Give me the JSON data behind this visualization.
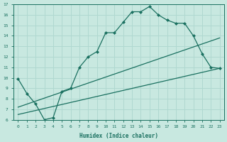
{
  "xlabel": "Humidex (Indice chaleur)",
  "bg_color": "#c8e8e0",
  "grid_color": "#b0d8d0",
  "line_color": "#1a7060",
  "xlim": [
    -0.5,
    23.5
  ],
  "ylim": [
    6,
    17
  ],
  "yticks": [
    6,
    7,
    8,
    9,
    10,
    11,
    12,
    13,
    14,
    15,
    16,
    17
  ],
  "xticks": [
    0,
    1,
    2,
    3,
    4,
    5,
    6,
    7,
    8,
    9,
    10,
    11,
    12,
    13,
    14,
    15,
    16,
    17,
    18,
    19,
    20,
    21,
    22,
    23
  ],
  "line1_x": [
    0,
    1,
    2,
    3,
    4,
    5,
    6,
    7,
    8,
    9,
    10,
    11,
    12,
    13,
    14,
    15,
    16,
    17,
    18,
    19,
    20,
    21,
    22,
    23
  ],
  "line1_y": [
    9.9,
    8.5,
    7.5,
    6.0,
    6.2,
    8.7,
    9.0,
    11.0,
    12.0,
    12.5,
    14.3,
    14.3,
    15.3,
    16.3,
    16.3,
    16.8,
    16.0,
    15.5,
    15.2,
    15.2,
    14.0,
    12.3,
    11.0,
    10.9
  ],
  "line2_x": [
    0,
    23
  ],
  "line2_y": [
    6.5,
    10.9
  ],
  "line3_x": [
    0,
    23
  ],
  "line3_y": [
    7.2,
    13.8
  ]
}
